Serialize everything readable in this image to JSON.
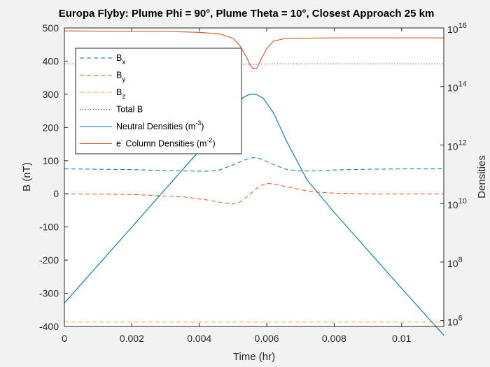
{
  "chart_data": {
    "type": "line",
    "title": "Europa Flyby: Plume Phi = 90°, Plume Theta = 10°, Closest Approach 25 km",
    "xlabel": "Time (hr)",
    "ylabel_left": "B (nT)",
    "ylabel_right": "Densities",
    "xlim": [
      0,
      0.01125
    ],
    "ylim_left": [
      -400,
      500
    ],
    "ylim_right_log10": [
      5.8,
      16
    ],
    "right_scale": "log",
    "grid": false,
    "legend_placement": "top-left",
    "x_ticks": [
      {
        "v": 0,
        "label": "0"
      },
      {
        "v": 0.002,
        "label": "0.002"
      },
      {
        "v": 0.004,
        "label": "0.004"
      },
      {
        "v": 0.006,
        "label": "0.006"
      },
      {
        "v": 0.008,
        "label": "0.008"
      },
      {
        "v": 0.01,
        "label": "0.01"
      }
    ],
    "y_left_ticks": [
      {
        "v": 500,
        "label": "500"
      },
      {
        "v": 400,
        "label": "400"
      },
      {
        "v": 300,
        "label": "300"
      },
      {
        "v": 200,
        "label": "200"
      },
      {
        "v": 100,
        "label": "100"
      },
      {
        "v": 0,
        "label": "0"
      },
      {
        "v": -100,
        "label": "-100"
      },
      {
        "v": -200,
        "label": "-200"
      },
      {
        "v": -300,
        "label": "-300"
      },
      {
        "v": -400,
        "label": "-400"
      }
    ],
    "y_right_ticks": [
      {
        "exp": 6,
        "label": "6"
      },
      {
        "exp": 8,
        "label": "8"
      },
      {
        "exp": 10,
        "label": "10"
      },
      {
        "exp": 12,
        "label": "12"
      },
      {
        "exp": 14,
        "label": "14"
      },
      {
        "exp": 16,
        "label": "16"
      }
    ],
    "y_right_tick_base": "10",
    "series": [
      {
        "name": "Bx",
        "name_main": "B",
        "name_sub": "x",
        "name_sup": "",
        "axis": "left",
        "color": "#0072bd",
        "dash": "dashed",
        "points": [
          [
            0,
            75
          ],
          [
            0.002,
            73
          ],
          [
            0.0035,
            69
          ],
          [
            0.0042,
            68
          ],
          [
            0.0046,
            72
          ],
          [
            0.005,
            87
          ],
          [
            0.0054,
            104
          ],
          [
            0.0056,
            109
          ],
          [
            0.0058,
            106
          ],
          [
            0.006,
            97
          ],
          [
            0.0063,
            84
          ],
          [
            0.0066,
            73
          ],
          [
            0.007,
            69
          ],
          [
            0.0075,
            69
          ],
          [
            0.008,
            72
          ],
          [
            0.009,
            74
          ],
          [
            0.01,
            75
          ],
          [
            0.01125,
            75
          ]
        ]
      },
      {
        "name": "By",
        "name_main": "B",
        "name_sub": "y",
        "name_sup": "",
        "axis": "left",
        "color": "#d95319",
        "dash": "dashed",
        "points": [
          [
            0,
            0
          ],
          [
            0.002,
            -2
          ],
          [
            0.0035,
            -9
          ],
          [
            0.0042,
            -18
          ],
          [
            0.0047,
            -27
          ],
          [
            0.005,
            -31
          ],
          [
            0.0052,
            -25
          ],
          [
            0.0054,
            -10
          ],
          [
            0.0056,
            8
          ],
          [
            0.0058,
            24
          ],
          [
            0.006,
            31
          ],
          [
            0.0062,
            30
          ],
          [
            0.0065,
            23
          ],
          [
            0.007,
            12
          ],
          [
            0.0075,
            5
          ],
          [
            0.008,
            2
          ],
          [
            0.009,
            0
          ],
          [
            0.01,
            0
          ],
          [
            0.01125,
            0
          ]
        ]
      },
      {
        "name": "Bz",
        "name_main": "B",
        "name_sub": "z",
        "name_sup": "",
        "axis": "left",
        "color": "#edb120",
        "dash": "dashed",
        "points": [
          [
            0,
            -387
          ],
          [
            0.01125,
            -387
          ]
        ]
      },
      {
        "name": "Total B",
        "name_main": "Total B",
        "name_sub": "",
        "name_sup": "",
        "axis": "left",
        "color": "#7e2f8e",
        "dash": "dotted",
        "points": [
          [
            0,
            392
          ],
          [
            0.003,
            392
          ],
          [
            0.0048,
            392
          ],
          [
            0.0052,
            391
          ],
          [
            0.0056,
            390
          ],
          [
            0.006,
            391
          ],
          [
            0.0065,
            392
          ],
          [
            0.008,
            392
          ],
          [
            0.01125,
            392
          ]
        ]
      },
      {
        "name": "Neutral Densities (m-3)",
        "name_main": "Neutral Densities (m",
        "name_sub": "",
        "name_sup": "-3",
        "name_tail": ")",
        "axis": "right",
        "color": "#0072bd",
        "dash": "solid",
        "points": [
          [
            0,
            6.6
          ],
          [
            0.001,
            7.9
          ],
          [
            0.002,
            9.2
          ],
          [
            0.003,
            10.5
          ],
          [
            0.004,
            11.8
          ],
          [
            0.0045,
            12.5
          ],
          [
            0.005,
            13.2
          ],
          [
            0.0053,
            13.62
          ],
          [
            0.0055,
            13.74
          ],
          [
            0.0057,
            13.72
          ],
          [
            0.0059,
            13.6
          ],
          [
            0.0062,
            13.1
          ],
          [
            0.0066,
            12.1
          ],
          [
            0.0072,
            10.8
          ],
          [
            0.008,
            9.7
          ],
          [
            0.009,
            8.4
          ],
          [
            0.01,
            7.1
          ],
          [
            0.01125,
            5.5
          ]
        ]
      },
      {
        "name": "e- Column Densities (m-2)",
        "name_main": "e",
        "name_sub": "",
        "name_sup": "-",
        "name_tail": " Column Densities (m",
        "name_sup2": "-2",
        "name_tail2": ")",
        "axis": "right",
        "color": "#d95319",
        "dash": "solid",
        "points": [
          [
            0,
            15.9
          ],
          [
            0.003,
            15.88
          ],
          [
            0.004,
            15.85
          ],
          [
            0.0046,
            15.8
          ],
          [
            0.005,
            15.65
          ],
          [
            0.0052,
            15.4
          ],
          [
            0.0054,
            15.0
          ],
          [
            0.0055,
            14.75
          ],
          [
            0.0056,
            14.6
          ],
          [
            0.0057,
            14.62
          ],
          [
            0.0058,
            14.85
          ],
          [
            0.006,
            15.3
          ],
          [
            0.0062,
            15.55
          ],
          [
            0.0065,
            15.63
          ],
          [
            0.007,
            15.65
          ],
          [
            0.008,
            15.66
          ],
          [
            0.01,
            15.66
          ],
          [
            0.01125,
            15.66
          ]
        ]
      }
    ]
  }
}
